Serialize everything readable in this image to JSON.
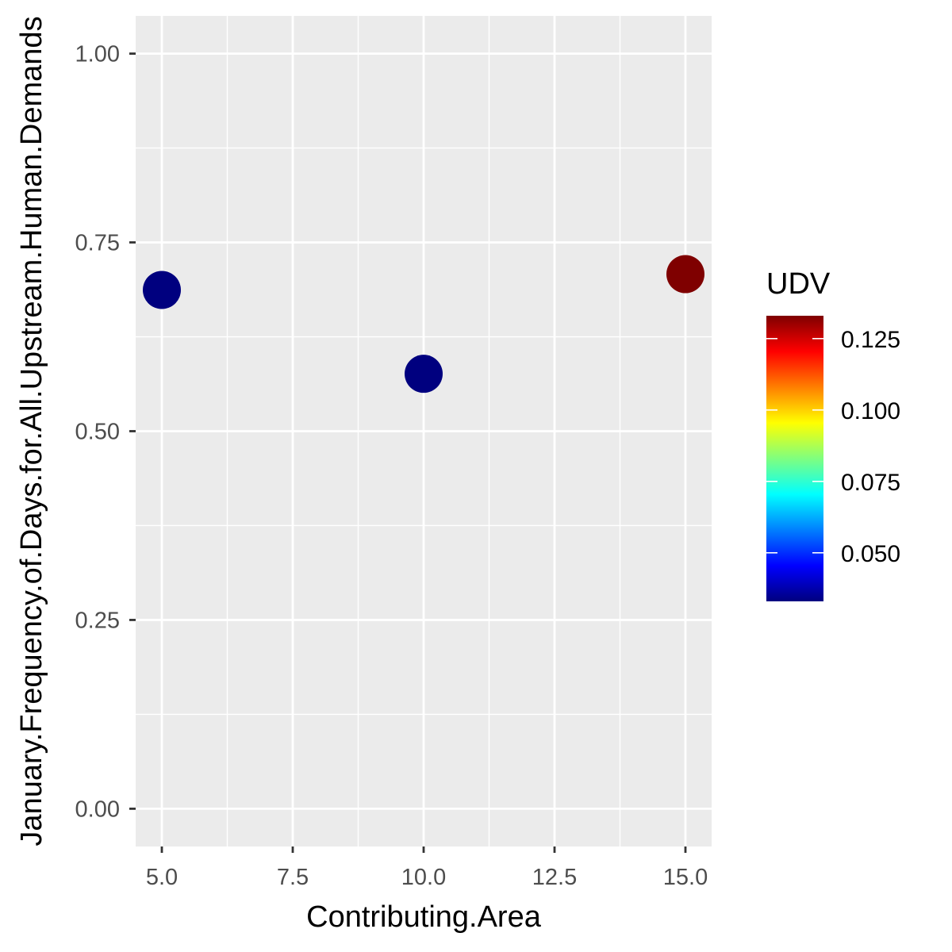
{
  "chart_data": {
    "type": "scatter",
    "xlabel": "Contributing.Area",
    "ylabel": "January.Frequency.of.Days.for.All.Upstream.Human.Demands",
    "xlim": [
      4.5,
      15.5
    ],
    "ylim": [
      -0.05,
      1.05
    ],
    "x_ticks": [
      5.0,
      7.5,
      10.0,
      12.5,
      15.0
    ],
    "x_tick_labels": [
      "5.0",
      "7.5",
      "10.0",
      "12.5",
      "15.0"
    ],
    "y_ticks": [
      0.0,
      0.25,
      0.5,
      0.75,
      1.0
    ],
    "y_tick_labels": [
      "0.00",
      "0.25",
      "0.50",
      "0.75",
      "1.00"
    ],
    "grid": true,
    "points": [
      {
        "x": 5,
        "y": 0.687,
        "UDV": 0.033
      },
      {
        "x": 10,
        "y": 0.576,
        "UDV": 0.033
      },
      {
        "x": 15,
        "y": 0.708,
        "UDV": 0.133
      }
    ],
    "colorbar": {
      "title": "UDV",
      "range": [
        0.033,
        0.133
      ],
      "ticks": [
        0.05,
        0.075,
        0.1,
        0.125
      ],
      "tick_labels": [
        "0.050",
        "0.075",
        "0.100",
        "0.125"
      ],
      "palette": [
        "#00007F",
        "#0000FF",
        "#007FFF",
        "#00FFFF",
        "#7FFF7F",
        "#FFFF00",
        "#FF7F00",
        "#FF0000",
        "#7F0000"
      ]
    },
    "legend_position": "right",
    "panel_background": "#EBEBEB",
    "grid_color": "#FFFFFF"
  }
}
